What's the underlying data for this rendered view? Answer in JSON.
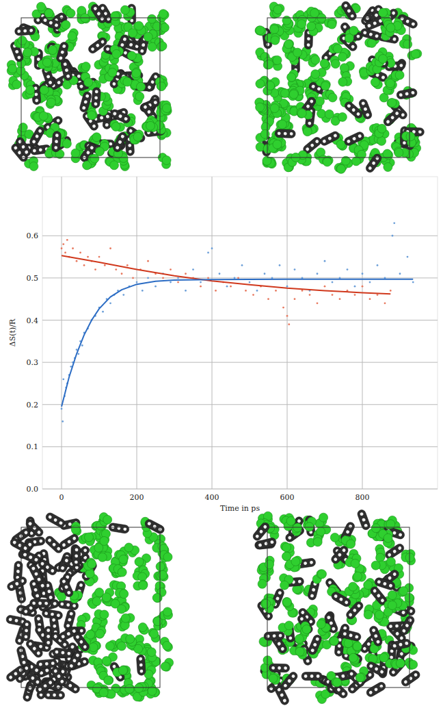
{
  "chart_data": {
    "type": "scatter",
    "x_label": "Time in ps",
    "y_label": "ΔS(t)/R",
    "xlim": [
      -51,
      1000
    ],
    "ylim": [
      0,
      0.74
    ],
    "xticks": [
      0,
      200,
      400,
      600,
      800
    ],
    "yticks": [
      {
        "value": 0,
        "label": "0.0"
      },
      0.1,
      0.2,
      0.3,
      0.4,
      0.5,
      0.6
    ],
    "grid": true,
    "series": [
      {
        "type": "scatter",
        "marker": "dot",
        "color": "#e8795f",
        "x": [
          0,
          5,
          10,
          15,
          20,
          30,
          40,
          50,
          60,
          70,
          80,
          90,
          100,
          115,
          130,
          145,
          160,
          175,
          190,
          210,
          230,
          250,
          270,
          290,
          310,
          330,
          350,
          370,
          390,
          410,
          430,
          450,
          470,
          490,
          510,
          530,
          550,
          570,
          590,
          600,
          605,
          620,
          640,
          660,
          680,
          700,
          720,
          740,
          760,
          780,
          800,
          820,
          840,
          860,
          875
        ],
        "values": [
          0.57,
          0.58,
          0.56,
          0.59,
          0.55,
          0.57,
          0.54,
          0.56,
          0.53,
          0.55,
          0.54,
          0.52,
          0.55,
          0.53,
          0.57,
          0.52,
          0.51,
          0.53,
          0.5,
          0.52,
          0.54,
          0.51,
          0.5,
          0.52,
          0.49,
          0.51,
          0.5,
          0.48,
          0.5,
          0.47,
          0.49,
          0.48,
          0.5,
          0.47,
          0.46,
          0.48,
          0.45,
          0.47,
          0.43,
          0.41,
          0.39,
          0.45,
          0.47,
          0.46,
          0.44,
          0.48,
          0.46,
          0.45,
          0.47,
          0.46,
          0.48,
          0.45,
          0.46,
          0.44,
          0.47
        ]
      },
      {
        "type": "scatter",
        "marker": "dot",
        "color": "#6c9fd8",
        "x": [
          0,
          3,
          5,
          8,
          12,
          15,
          20,
          25,
          30,
          35,
          40,
          45,
          50,
          55,
          60,
          70,
          80,
          90,
          100,
          110,
          120,
          130,
          140,
          150,
          165,
          180,
          200,
          215,
          230,
          250,
          270,
          290,
          310,
          330,
          350,
          370,
          390,
          400,
          420,
          440,
          460,
          480,
          500,
          520,
          540,
          560,
          580,
          600,
          620,
          640,
          660,
          680,
          700,
          720,
          740,
          760,
          780,
          800,
          820,
          840,
          860,
          880,
          885,
          900,
          920,
          935
        ],
        "values": [
          0.19,
          0.16,
          0.26,
          0.22,
          0.24,
          0.25,
          0.27,
          0.29,
          0.3,
          0.31,
          0.33,
          0.32,
          0.35,
          0.34,
          0.37,
          0.38,
          0.4,
          0.41,
          0.43,
          0.42,
          0.45,
          0.44,
          0.46,
          0.47,
          0.46,
          0.48,
          0.49,
          0.47,
          0.5,
          0.48,
          0.51,
          0.49,
          0.5,
          0.47,
          0.52,
          0.49,
          0.56,
          0.57,
          0.51,
          0.48,
          0.5,
          0.53,
          0.49,
          0.47,
          0.51,
          0.5,
          0.53,
          0.48,
          0.52,
          0.5,
          0.47,
          0.51,
          0.54,
          0.49,
          0.5,
          0.52,
          0.48,
          0.51,
          0.49,
          0.53,
          0.5,
          0.6,
          0.63,
          0.51,
          0.55,
          0.49
        ]
      },
      {
        "type": "line",
        "line_style": "solid",
        "color": "#d0381c",
        "x": [
          0,
          100,
          200,
          300,
          400,
          500,
          600,
          700,
          800,
          875
        ],
        "values": [
          0.553,
          0.537,
          0.52,
          0.505,
          0.493,
          0.484,
          0.476,
          0.47,
          0.465,
          0.462
        ]
      },
      {
        "type": "line",
        "line_style": "solid",
        "color": "#2b6cc4",
        "x": [
          0,
          20,
          40,
          60,
          80,
          100,
          130,
          160,
          200,
          250,
          300,
          400,
          600,
          935
        ],
        "values": [
          0.195,
          0.265,
          0.32,
          0.365,
          0.4,
          0.427,
          0.455,
          0.472,
          0.485,
          0.492,
          0.495,
          0.496,
          0.497,
          0.497
        ]
      }
    ]
  }
}
